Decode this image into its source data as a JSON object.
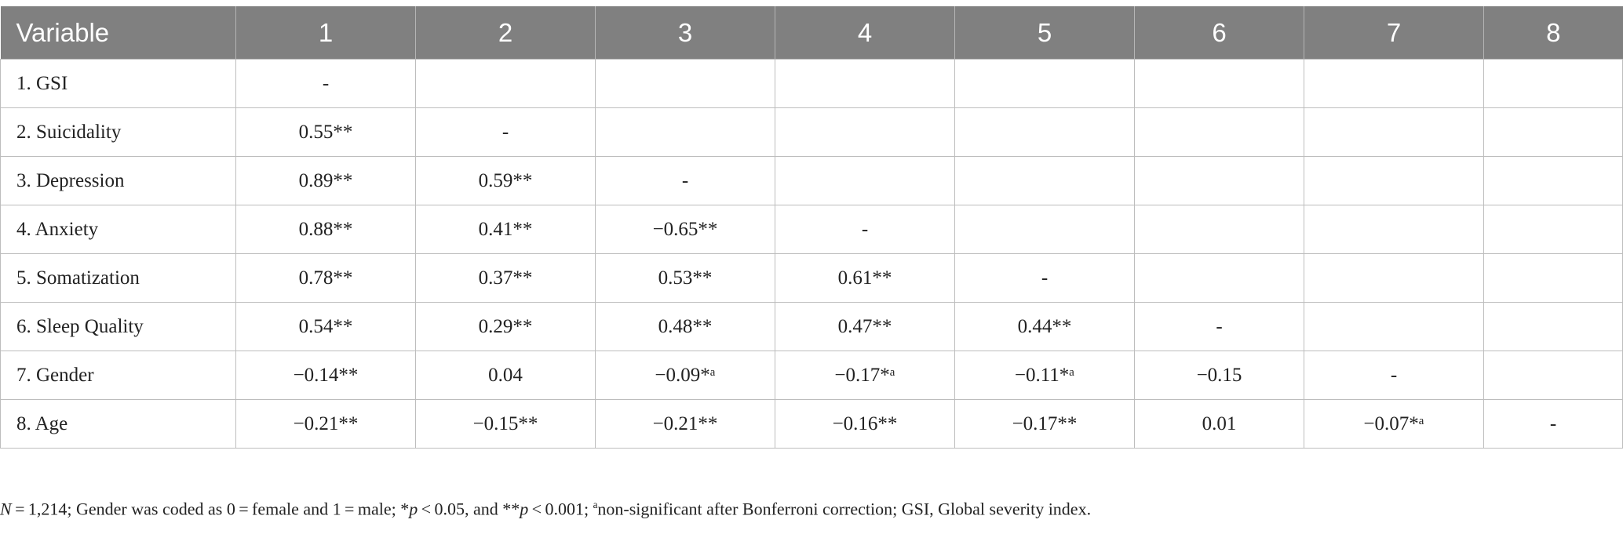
{
  "table": {
    "headers": [
      "Variable",
      "1",
      "2",
      "3",
      "4",
      "5",
      "6",
      "7",
      "8"
    ],
    "rows": [
      [
        "1. GSI",
        "-",
        "",
        "",
        "",
        "",
        "",
        "",
        ""
      ],
      [
        "2. Suicidality",
        "0.55**",
        "-",
        "",
        "",
        "",
        "",
        "",
        ""
      ],
      [
        "3. Depression",
        "0.89**",
        "0.59**",
        "-",
        "",
        "",
        "",
        "",
        ""
      ],
      [
        "4. Anxiety",
        "0.88**",
        "0.41**",
        "−0.65**",
        "-",
        "",
        "",
        "",
        ""
      ],
      [
        "5. Somatization",
        "0.78**",
        "0.37**",
        "0.53**",
        "0.61**",
        "-",
        "",
        "",
        ""
      ],
      [
        "6. Sleep Quality",
        "0.54**",
        "0.29**",
        "0.48**",
        "0.47**",
        "0.44**",
        "-",
        "",
        ""
      ],
      [
        "7. Gender",
        "−0.14**",
        "0.04",
        "−0.09*ᵃ",
        "−0.17*ᵃ",
        "−0.11*ᵃ",
        "−0.15",
        "-",
        ""
      ],
      [
        "8. Age",
        "−0.21**",
        "−0.15**",
        "−0.21**",
        "−0.16**",
        "−0.17**",
        "0.01",
        "−0.07*ᵃ",
        "-"
      ]
    ]
  },
  "note": {
    "n": "N",
    "n_rest": " = 1,214; Gender was coded as 0 = female and 1 = male; *",
    "p1": "p",
    "p1_rest": " < 0.05, and **",
    "p2": "p",
    "p2_rest": " < 0.001; ",
    "sup": "a",
    "tail": "non-significant after Bonferroni correction; GSI, Global severity index."
  }
}
